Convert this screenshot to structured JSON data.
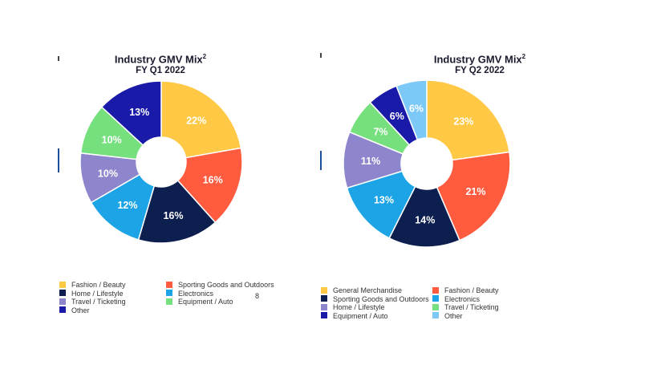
{
  "chart_data": [
    {
      "type": "pie",
      "title": "Industry GMV Mix",
      "title_superscript": "2",
      "subtitle": "FY Q1 2022",
      "slices": [
        {
          "label": "Fashion / Beauty",
          "value": 22,
          "color": "#FFC845"
        },
        {
          "label": "Sporting Goods and Outdoors",
          "value": 16,
          "color": "#FF5B3F"
        },
        {
          "label": "Home / Lifestyle",
          "value": 16,
          "color": "#0D1F4F"
        },
        {
          "label": "Electronics",
          "value": 12,
          "color": "#1CA4E6"
        },
        {
          "label": "Travel / Ticketing",
          "value": 10,
          "color": "#8E86CC"
        },
        {
          "label": "Equipment / Auto",
          "value": 10,
          "color": "#77E07E"
        },
        {
          "label": "Other",
          "value": 13,
          "color": "#1A1AA8"
        }
      ],
      "legend_order": [
        "Fashion / Beauty",
        "Sporting Goods and Outdoors",
        "Home / Lifestyle",
        "Electronics",
        "Travel / Ticketing",
        "Equipment / Auto",
        "Other"
      ],
      "legend_placement": "bottom"
    },
    {
      "type": "pie",
      "title": "Industry GMV Mix",
      "title_superscript": "2",
      "subtitle": "FY Q2 2022",
      "slices": [
        {
          "label": "General Merchandise",
          "value": 23,
          "color": "#FFC845"
        },
        {
          "label": "Fashion / Beauty",
          "value": 21,
          "color": "#FF5B3F"
        },
        {
          "label": "Sporting Goods and Outdoors",
          "value": 14,
          "color": "#0D1F4F"
        },
        {
          "label": "Electronics",
          "value": 13,
          "color": "#1CA4E6"
        },
        {
          "label": "Home / Lifestyle",
          "value": 11,
          "color": "#8E86CC"
        },
        {
          "label": "Travel / Ticketing",
          "value": 7,
          "color": "#77E07E"
        },
        {
          "label": "Equipment / Auto",
          "value": 6,
          "color": "#1A1AA8"
        },
        {
          "label": "Other",
          "value": 6,
          "color": "#7CC8F7"
        }
      ],
      "legend_order": [
        "General Merchandise",
        "Fashion / Beauty",
        "Sporting Goods and Outdoors",
        "Electronics",
        "Home / Lifestyle",
        "Travel / Ticketing",
        "Equipment / Auto",
        "Other"
      ],
      "legend_placement": "bottom"
    }
  ],
  "page_number": "8"
}
